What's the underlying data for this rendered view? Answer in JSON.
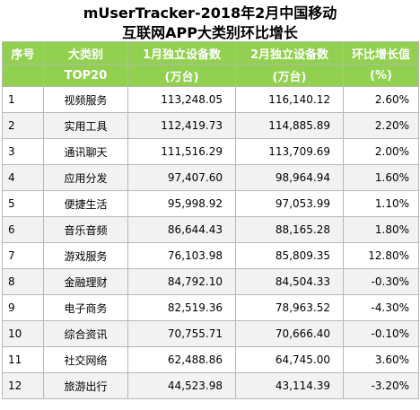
{
  "title": {
    "line1": "mUserTracker-2018年2月中国移动",
    "line2": "互联网APP大类别环比增长"
  },
  "header": {
    "col0": "序号",
    "col1": "大类别",
    "col2": "1月独立设备数",
    "col3": "2月独立设备数",
    "col4": "环比增长值",
    "sub1": "TOP20",
    "sub2": "(万台)",
    "sub3": "(万台)",
    "sub4": "(%)"
  },
  "rows": [
    {
      "idx": "1",
      "cat": "视频服务",
      "jan": "113,248.05",
      "feb": "116,140.12",
      "growth": "2.60%"
    },
    {
      "idx": "2",
      "cat": "实用工具",
      "jan": "112,419.73",
      "feb": "114,885.89",
      "growth": "2.20%"
    },
    {
      "idx": "3",
      "cat": "通讯聊天",
      "jan": "111,516.29",
      "feb": "113,709.69",
      "growth": "2.00%"
    },
    {
      "idx": "4",
      "cat": "应用分发",
      "jan": "97,407.60",
      "feb": "98,964.94",
      "growth": "1.60%"
    },
    {
      "idx": "5",
      "cat": "便捷生活",
      "jan": "95,998.92",
      "feb": "97,053.99",
      "growth": "1.10%"
    },
    {
      "idx": "6",
      "cat": "音乐音频",
      "jan": "86,644.43",
      "feb": "88,165.28",
      "growth": "1.80%"
    },
    {
      "idx": "7",
      "cat": "游戏服务",
      "jan": "76,103.98",
      "feb": "85,809.35",
      "growth": "12.80%"
    },
    {
      "idx": "8",
      "cat": "金融理财",
      "jan": "84,792.10",
      "feb": "84,504.33",
      "growth": "-0.30%"
    },
    {
      "idx": "9",
      "cat": "电子商务",
      "jan": "82,519.36",
      "feb": "78,963.52",
      "growth": "-4.30%"
    },
    {
      "idx": "10",
      "cat": "综合资讯",
      "jan": "70,755.71",
      "feb": "70,666.40",
      "growth": "-0.10%"
    },
    {
      "idx": "11",
      "cat": "社交网络",
      "jan": "62,488.86",
      "feb": "64,745.00",
      "growth": "3.60%"
    },
    {
      "idx": "12",
      "cat": "旅游出行",
      "jan": "44,523.98",
      "feb": "43,114.39",
      "growth": "-3.20%"
    }
  ],
  "colors": {
    "header_bg": "#92d050",
    "header_text": "#ffffff",
    "row_alt_bg": "#f2f2f2",
    "border": "#b7b7b7"
  }
}
